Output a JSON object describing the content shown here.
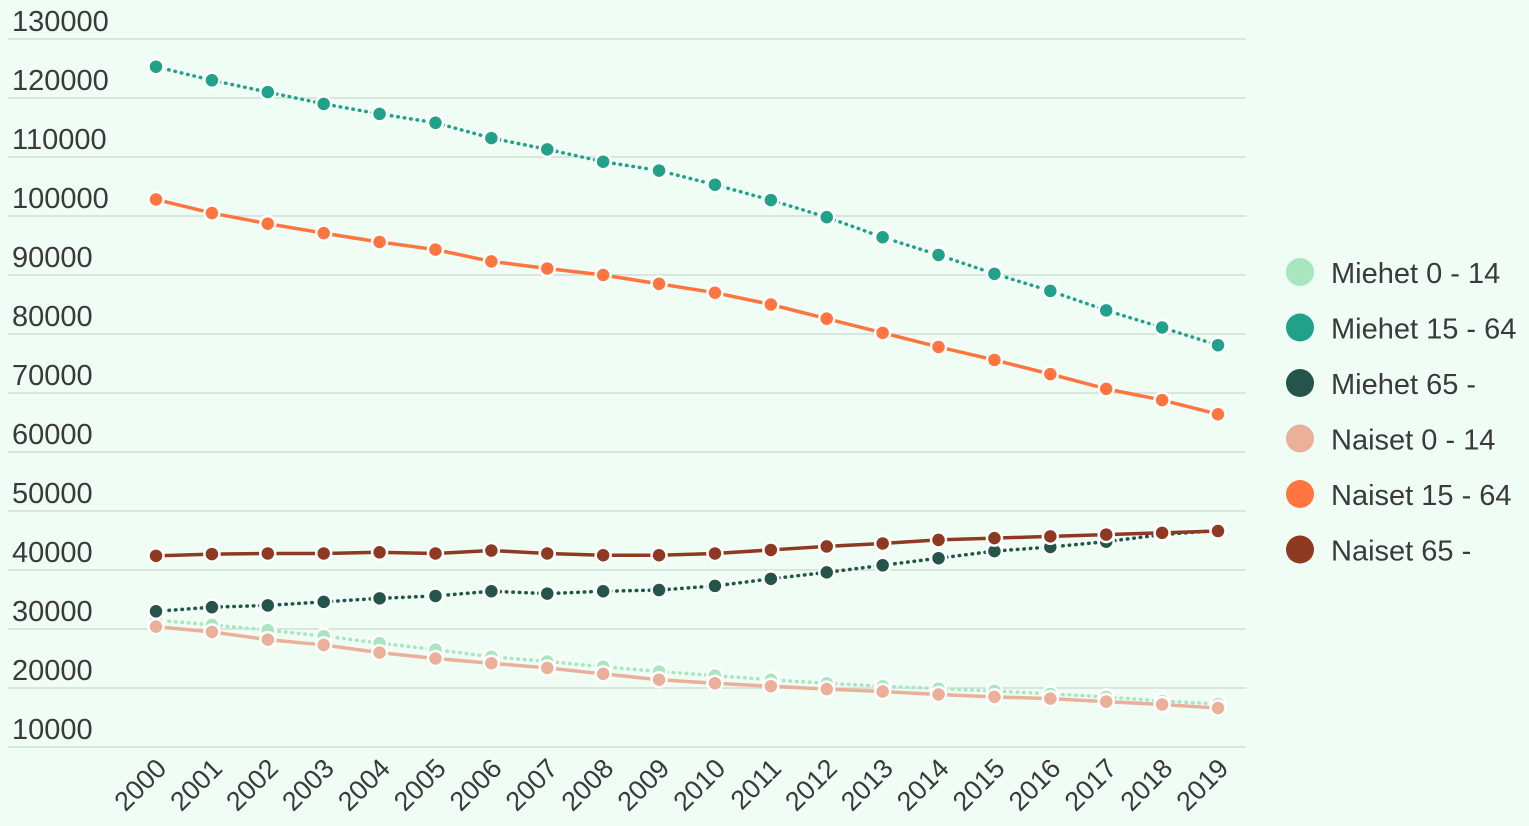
{
  "chart_data": {
    "type": "line",
    "title": "",
    "xlabel": "",
    "ylabel": "",
    "x": [
      2000,
      2001,
      2002,
      2003,
      2004,
      2005,
      2006,
      2007,
      2008,
      2009,
      2010,
      2011,
      2012,
      2013,
      2014,
      2015,
      2016,
      2017,
      2018,
      2019
    ],
    "y_ticks": [
      10000,
      20000,
      30000,
      40000,
      50000,
      60000,
      70000,
      80000,
      90000,
      100000,
      110000,
      120000,
      130000
    ],
    "ylim": [
      7000,
      130000
    ],
    "grid": true,
    "legend_position": "right",
    "series": [
      {
        "name": "Miehet 0 - 14",
        "color": "#a8e6bf",
        "line_style": "dotted",
        "values": [
          31500,
          30700,
          29800,
          28800,
          27600,
          26500,
          25300,
          24500,
          23600,
          22800,
          22100,
          21400,
          20800,
          20300,
          19900,
          19500,
          19000,
          18500,
          17800,
          17300
        ]
      },
      {
        "name": "Miehet 15 - 64",
        "color": "#21a08a",
        "line_style": "dotted",
        "values": [
          125300,
          123000,
          121000,
          119000,
          117300,
          115800,
          113200,
          111300,
          109200,
          107700,
          105300,
          102700,
          99800,
          96400,
          93400,
          90200,
          87300,
          84000,
          81100,
          78100
        ]
      },
      {
        "name": "Miehet 65 -",
        "color": "#24544a",
        "line_style": "dotted",
        "values": [
          33000,
          33700,
          34000,
          34600,
          35200,
          35600,
          36400,
          36000,
          36400,
          36600,
          37300,
          38500,
          39600,
          40800,
          42000,
          43200,
          43900,
          44800,
          46000,
          46700
        ]
      },
      {
        "name": "Naiset 0 - 14",
        "color": "#eab09a",
        "line_style": "solid",
        "values": [
          30400,
          29500,
          28200,
          27300,
          26000,
          25000,
          24200,
          23400,
          22400,
          21400,
          20800,
          20300,
          19800,
          19400,
          18900,
          18500,
          18200,
          17700,
          17200,
          16600
        ]
      },
      {
        "name": "Naiset 15 - 64",
        "color": "#ff7540",
        "line_style": "solid",
        "values": [
          102800,
          100500,
          98700,
          97100,
          95600,
          94300,
          92300,
          91100,
          90000,
          88500,
          87000,
          85000,
          82600,
          80200,
          77800,
          75600,
          73200,
          70700,
          68800,
          66400
        ]
      },
      {
        "name": "Naiset 65 -",
        "color": "#8e3a22",
        "line_style": "solid",
        "values": [
          42400,
          42700,
          42800,
          42800,
          43000,
          42800,
          43300,
          42800,
          42500,
          42500,
          42800,
          43400,
          44000,
          44500,
          45100,
          45400,
          45700,
          46000,
          46300,
          46600
        ]
      }
    ]
  }
}
